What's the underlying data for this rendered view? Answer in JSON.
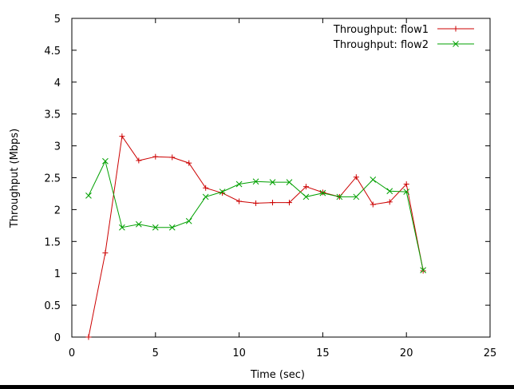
{
  "chart_data": {
    "type": "line",
    "title": "",
    "xlabel": "Time (sec)",
    "ylabel": "Throughput (Mbps)",
    "xlim": [
      0,
      25
    ],
    "ylim": [
      0,
      5
    ],
    "x_ticks": [
      0,
      5,
      10,
      15,
      20,
      25
    ],
    "x_tick_labels": [
      "0",
      "5",
      "10",
      "15",
      "20",
      "25"
    ],
    "y_ticks": [
      0,
      0.5,
      1,
      1.5,
      2,
      2.5,
      3,
      3.5,
      4,
      4.5,
      5
    ],
    "y_tick_labels": [
      "0",
      "0.5",
      "1",
      "1.5",
      "2",
      "2.5",
      "3",
      "3.5",
      "4",
      "4.5",
      "5"
    ],
    "grid": false,
    "legend_position": "top-right",
    "series": [
      {
        "name": "Throughput: flow1",
        "color": "#cc0000",
        "marker": "plus",
        "x": [
          1,
          2,
          3,
          4,
          5,
          6,
          7,
          8,
          9,
          10,
          11,
          12,
          13,
          14,
          15,
          16,
          17,
          18,
          19,
          20,
          21
        ],
        "y": [
          0,
          1.32,
          3.15,
          2.77,
          2.83,
          2.82,
          2.73,
          2.34,
          2.26,
          2.13,
          2.1,
          2.11,
          2.11,
          2.36,
          2.27,
          2.2,
          2.51,
          2.08,
          2.12,
          2.4,
          1.04
        ]
      },
      {
        "name": "Throughput: flow2",
        "color": "#00a000",
        "marker": "x",
        "x": [
          1,
          2,
          3,
          4,
          5,
          6,
          7,
          8,
          9,
          10,
          11,
          12,
          13,
          14,
          15,
          16,
          17,
          18,
          19,
          20,
          21
        ],
        "y": [
          2.22,
          2.76,
          1.72,
          1.77,
          1.72,
          1.72,
          1.82,
          2.2,
          2.28,
          2.4,
          2.44,
          2.43,
          2.43,
          2.2,
          2.26,
          2.2,
          2.2,
          2.47,
          2.29,
          2.28,
          1.05
        ]
      }
    ]
  }
}
